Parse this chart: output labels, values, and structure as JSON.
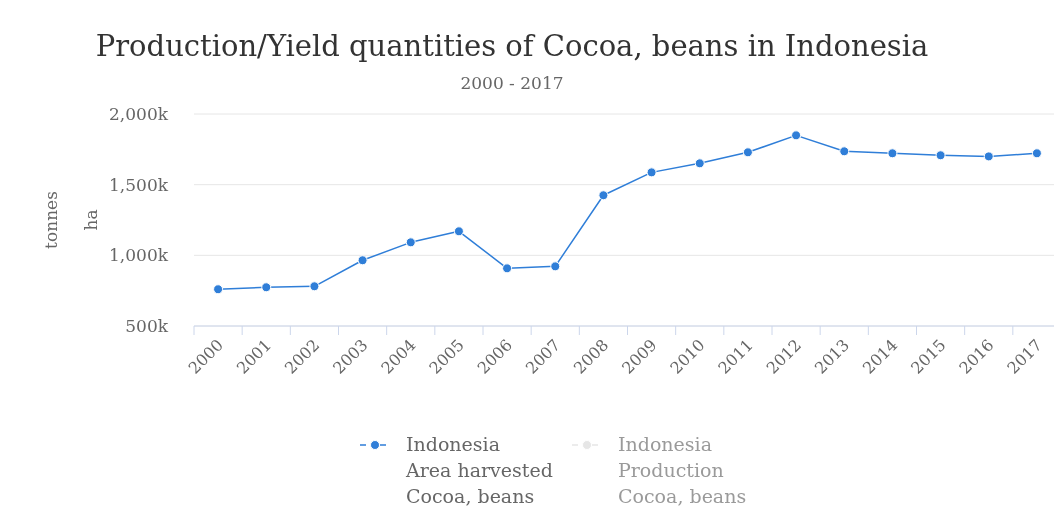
{
  "chart_data": {
    "type": "line",
    "title": "Production/Yield quantities of Cocoa, beans in Indonesia",
    "subtitle": "2000 - 2017",
    "ylabel": "tonnes",
    "y2label": "ha",
    "categories": [
      "2000",
      "2001",
      "2002",
      "2003",
      "2004",
      "2005",
      "2006",
      "2007",
      "2008",
      "2009",
      "2010",
      "2011",
      "2012",
      "2013",
      "2014",
      "2015",
      "2016",
      "2017"
    ],
    "series": [
      {
        "name": "Indonesia\nArea harvested\nCocoa, beans",
        "color": "#2f7ed8",
        "values": [
          760000,
          774000,
          781000,
          965000,
          1092000,
          1170000,
          908000,
          922000,
          1425000,
          1587000,
          1651000,
          1729000,
          1849000,
          1736000,
          1722000,
          1708000,
          1700000,
          1722000
        ]
      },
      {
        "name": "Indonesia\nProduction\nCocoa, beans",
        "color": "#e6e6e6",
        "values": [
          null,
          null,
          null,
          null,
          null,
          null,
          null,
          null,
          null,
          null,
          null,
          null,
          null,
          null,
          null,
          null,
          null,
          null
        ]
      }
    ],
    "ylim": [
      500000,
      2000000
    ],
    "yticks": [
      {
        "value": 500000,
        "label": "500k"
      },
      {
        "value": 1000000,
        "label": "1,000k"
      },
      {
        "value": 1500000,
        "label": "1,500k"
      },
      {
        "value": 2000000,
        "label": "2,000k"
      }
    ],
    "grid": "y",
    "legend": "bottom",
    "marker": "circle",
    "line_style": "solid"
  }
}
